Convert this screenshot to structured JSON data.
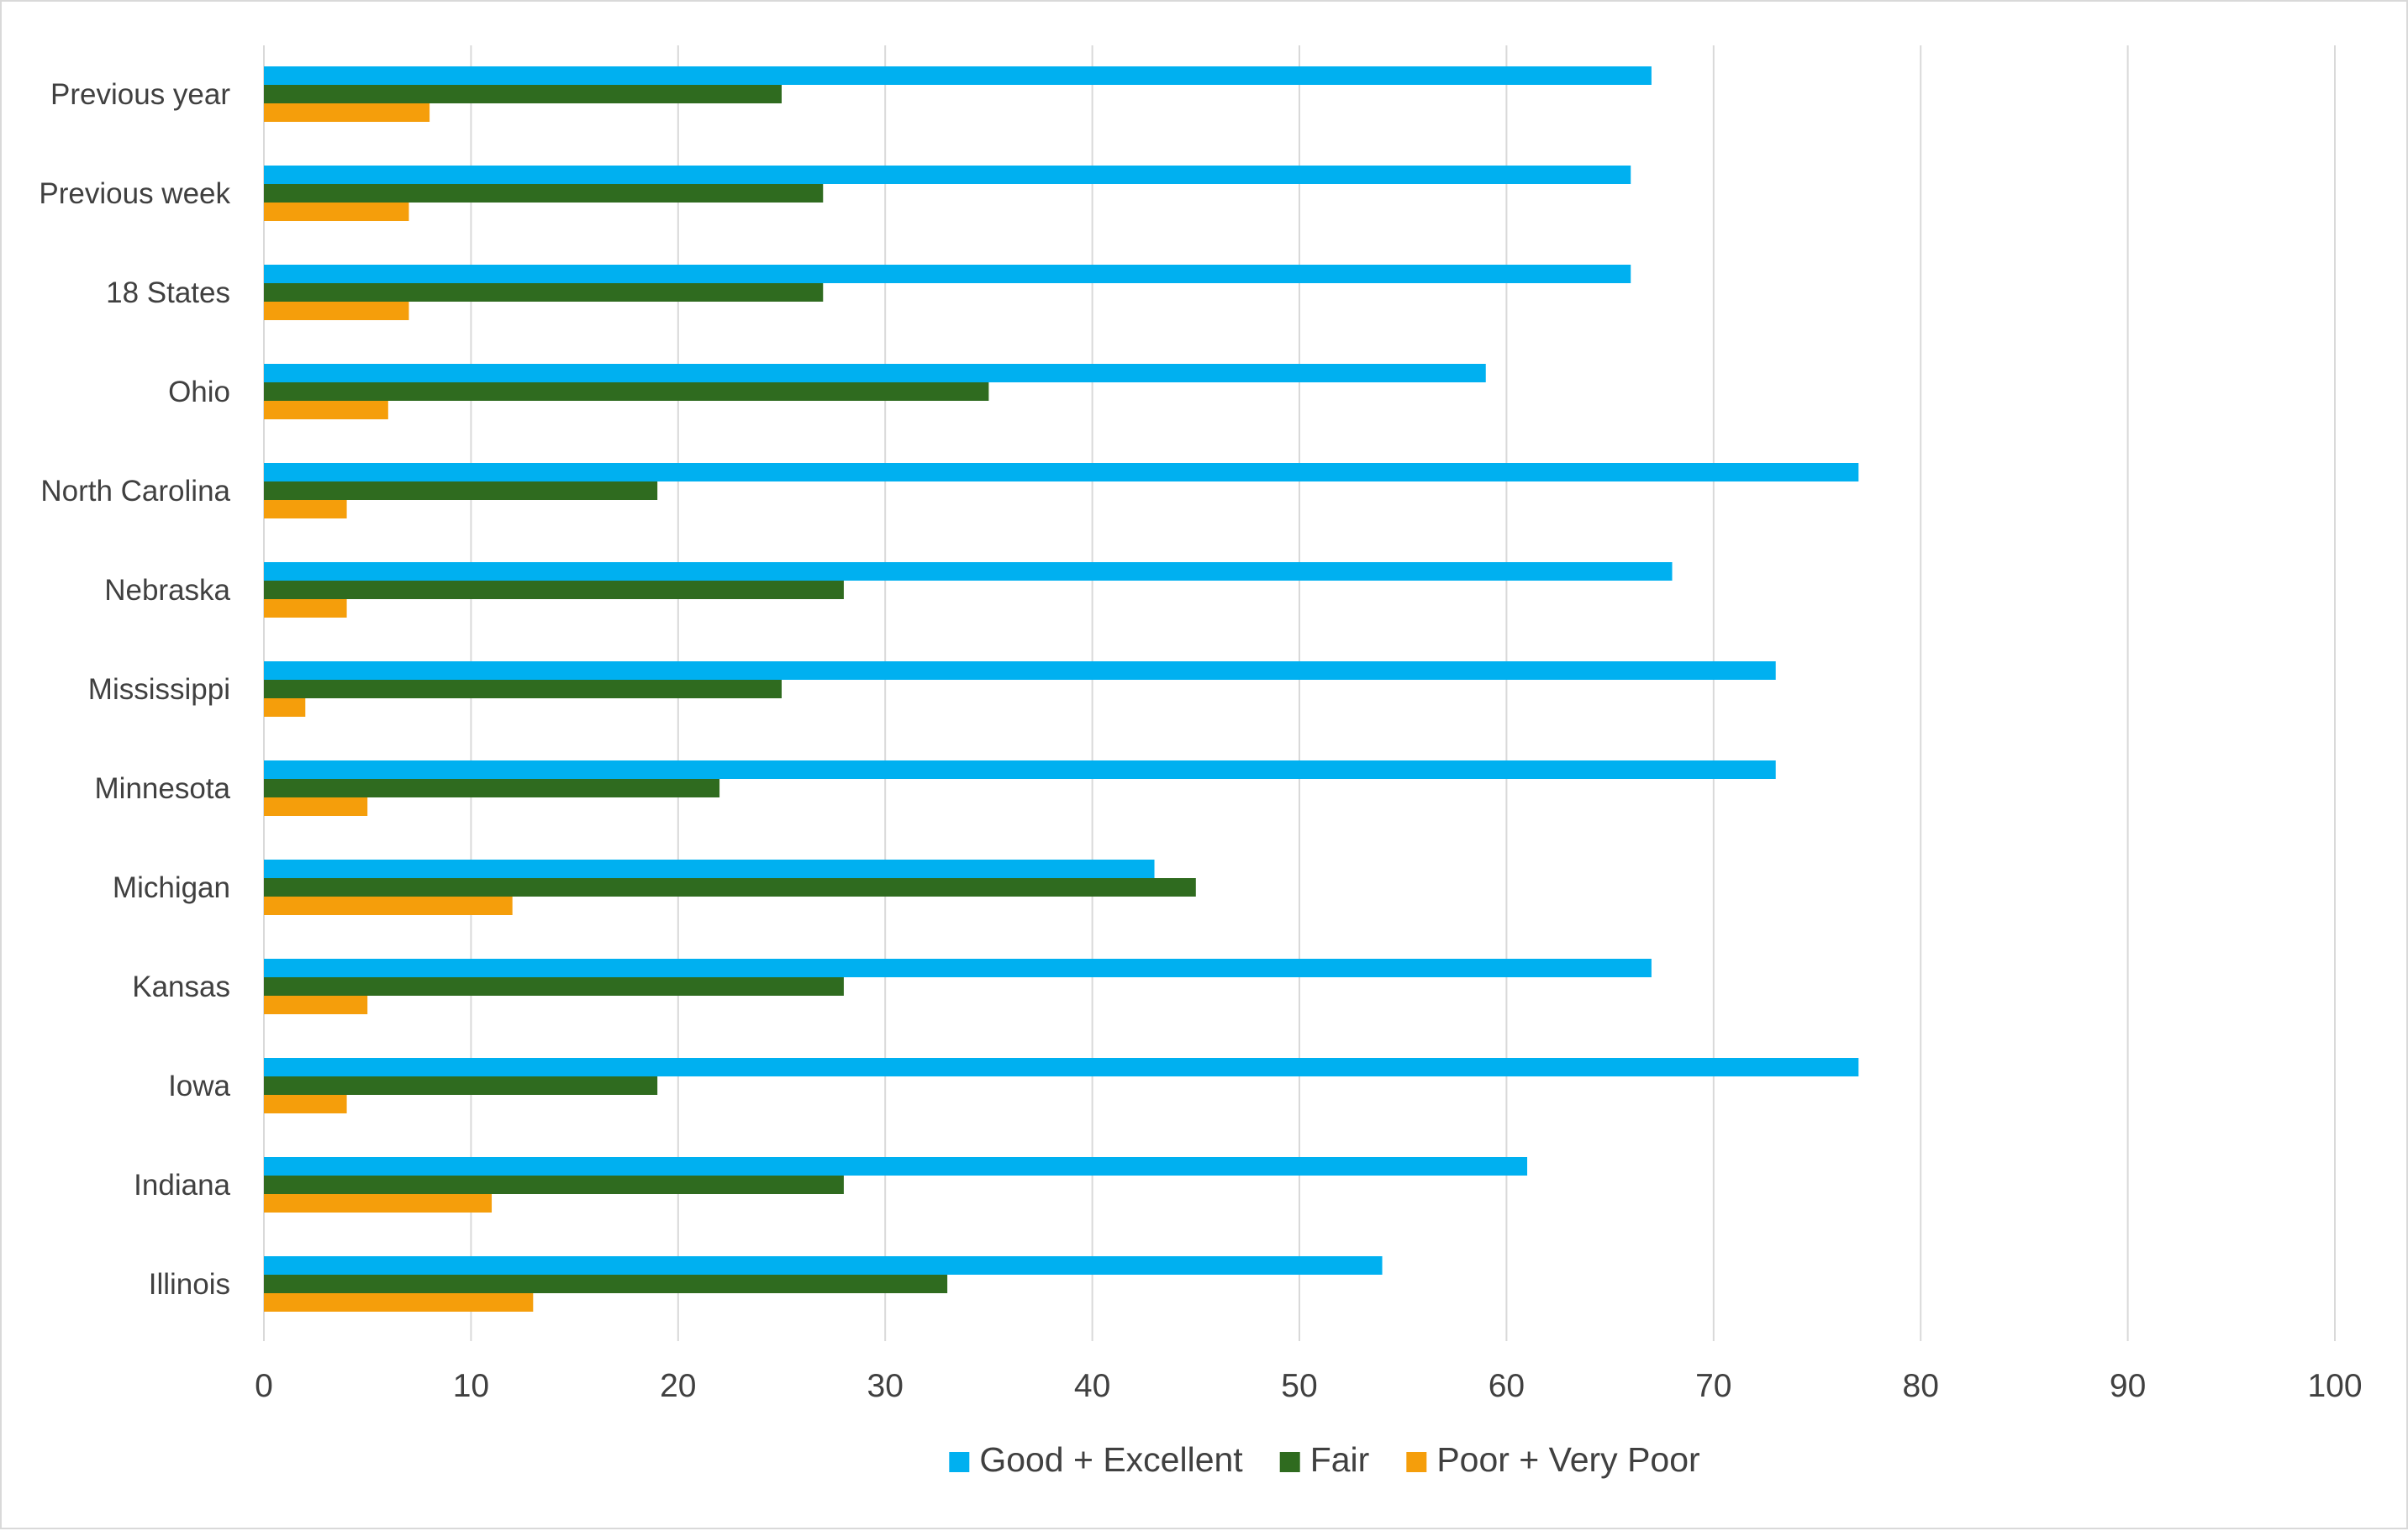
{
  "chart_data": {
    "type": "bar",
    "orientation": "horizontal",
    "categories": [
      "Previous year",
      "Previous week",
      "18 States",
      "Ohio",
      "North Carolina",
      "Nebraska",
      "Mississippi",
      "Minnesota",
      "Michigan",
      "Kansas",
      "Iowa",
      "Indiana",
      "Illinois"
    ],
    "series": [
      {
        "name": "Good + Excellent",
        "color": "#00b0f0",
        "values": [
          67,
          66,
          66,
          59,
          77,
          68,
          73,
          73,
          43,
          67,
          77,
          61,
          54
        ]
      },
      {
        "name": "Fair",
        "color": "#2f6b1f",
        "values": [
          25,
          27,
          27,
          35,
          19,
          28,
          25,
          22,
          45,
          28,
          19,
          28,
          33
        ]
      },
      {
        "name": "Poor + Very Poor",
        "color": "#f59e0b",
        "values": [
          8,
          7,
          7,
          6,
          4,
          4,
          2,
          5,
          12,
          5,
          4,
          11,
          13
        ]
      }
    ],
    "xlim": [
      0,
      100
    ],
    "x_ticks": [
      "0",
      "10",
      "20",
      "30",
      "40",
      "50",
      "60",
      "70",
      "80",
      "90",
      "100"
    ],
    "grid": "vertical",
    "legend": "bottom",
    "title": "",
    "xlabel": "",
    "ylabel": ""
  }
}
